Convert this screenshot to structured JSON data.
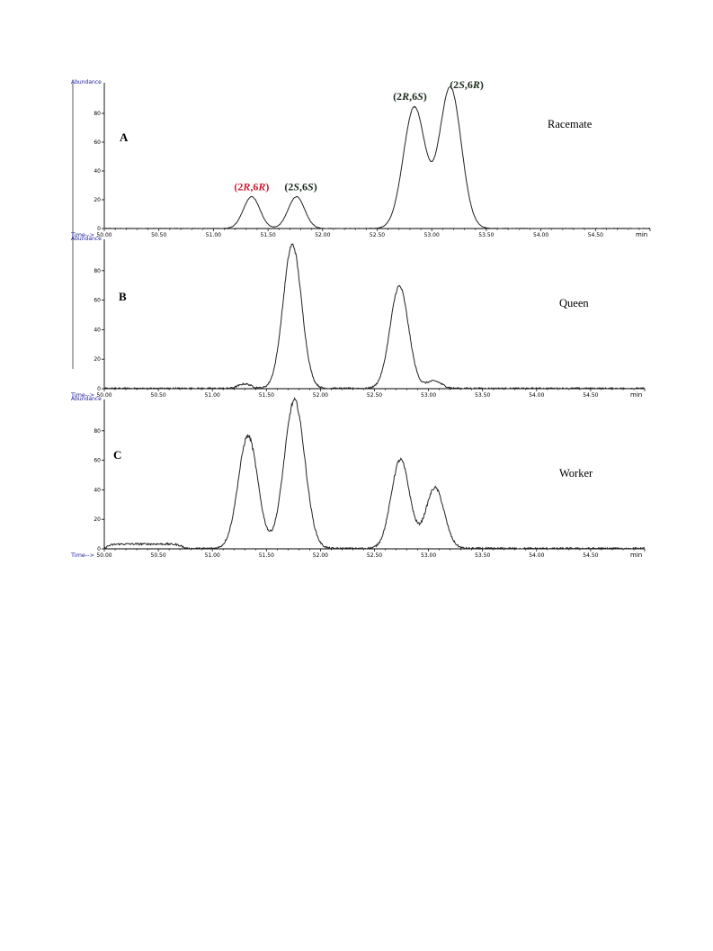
{
  "colors": {
    "axis": "#000000",
    "trace": "#222222",
    "axis_title": "#1a1a9c",
    "peak_red": "#d8182e",
    "peak_dark": "#1b2a1b"
  },
  "chart_data": [
    {
      "type": "line",
      "panel": "A",
      "sample": "Racemate",
      "ylabel": "Abundance",
      "xlabel": "Time-->",
      "xunit": "min",
      "xlim": [
        50.0,
        55.0
      ],
      "ylim": [
        0,
        100
      ],
      "xticks": [
        "50.00",
        "50.50",
        "51.00",
        "51.50",
        "52.00",
        "52.50",
        "53.00",
        "53.50",
        "54.00",
        "54.50"
      ],
      "yticks": [
        "0",
        "20",
        "40",
        "60",
        "80"
      ],
      "noise": 0.3,
      "peaks": [
        {
          "t": 51.35,
          "h": 22,
          "w": 0.075
        },
        {
          "t": 51.76,
          "h": 22,
          "w": 0.075
        },
        {
          "t": 52.84,
          "h": 84,
          "w": 0.1
        },
        {
          "t": 53.17,
          "h": 98,
          "w": 0.1
        }
      ],
      "peak_labels": [
        {
          "pre": "(2",
          "a": "R",
          "mid": ",6",
          "b": "R",
          "post": ")",
          "t": 51.35,
          "y": 24,
          "color": "#d8182e"
        },
        {
          "pre": "(2",
          "a": "S",
          "mid": ",6",
          "b": "S",
          "post": ")",
          "t": 51.8,
          "y": 24,
          "color": "#1b2a1b"
        },
        {
          "pre": "(2",
          "a": "R",
          "mid": ",6",
          "b": "S",
          "post": ")",
          "t": 52.8,
          "y": 87,
          "color": "#1b2a1b"
        },
        {
          "pre": "(2",
          "a": "S",
          "mid": ",6",
          "b": "R",
          "post": ")",
          "t": 53.32,
          "y": 95,
          "color": "#1b2a1b"
        }
      ]
    },
    {
      "type": "line",
      "panel": "B",
      "sample": "Queen",
      "ylabel": "Abundance",
      "xlabel": "Time-->",
      "xunit": "min",
      "xlim": [
        50.0,
        55.0
      ],
      "ylim": [
        0,
        100
      ],
      "xticks": [
        "50.00",
        "50.50",
        "51.00",
        "51.50",
        "52.00",
        "52.50",
        "53.00",
        "53.50",
        "54.00",
        "54.50"
      ],
      "yticks": [
        "0",
        "20",
        "40",
        "60",
        "80"
      ],
      "noise": 1.0,
      "peaks": [
        {
          "t": 51.3,
          "h": 3,
          "w": 0.06
        },
        {
          "t": 51.74,
          "h": 97,
          "w": 0.085
        },
        {
          "t": 52.73,
          "h": 69,
          "w": 0.085
        },
        {
          "t": 53.05,
          "h": 5,
          "w": 0.07
        }
      ],
      "peak_labels": []
    },
    {
      "type": "line",
      "panel": "C",
      "sample": "Worker",
      "ylabel": "Abundance",
      "xlabel": "Time-->",
      "xunit": "min",
      "xlim": [
        50.0,
        55.0
      ],
      "ylim": [
        0,
        100
      ],
      "xticks": [
        "50.00",
        "50.50",
        "51.00",
        "51.50",
        "52.00",
        "52.50",
        "53.00",
        "53.50",
        "54.00",
        "54.50"
      ],
      "yticks": [
        "0",
        "20",
        "40",
        "60",
        "80"
      ],
      "noise": 1.2,
      "baseline": [
        {
          "t0": 50.0,
          "t1": 50.75,
          "h": 3
        }
      ],
      "peaks": [
        {
          "t": 51.33,
          "h": 76,
          "w": 0.09
        },
        {
          "t": 51.76,
          "h": 100,
          "w": 0.095
        },
        {
          "t": 52.74,
          "h": 60,
          "w": 0.085
        },
        {
          "t": 53.06,
          "h": 41,
          "w": 0.085
        }
      ],
      "peak_labels": []
    }
  ]
}
